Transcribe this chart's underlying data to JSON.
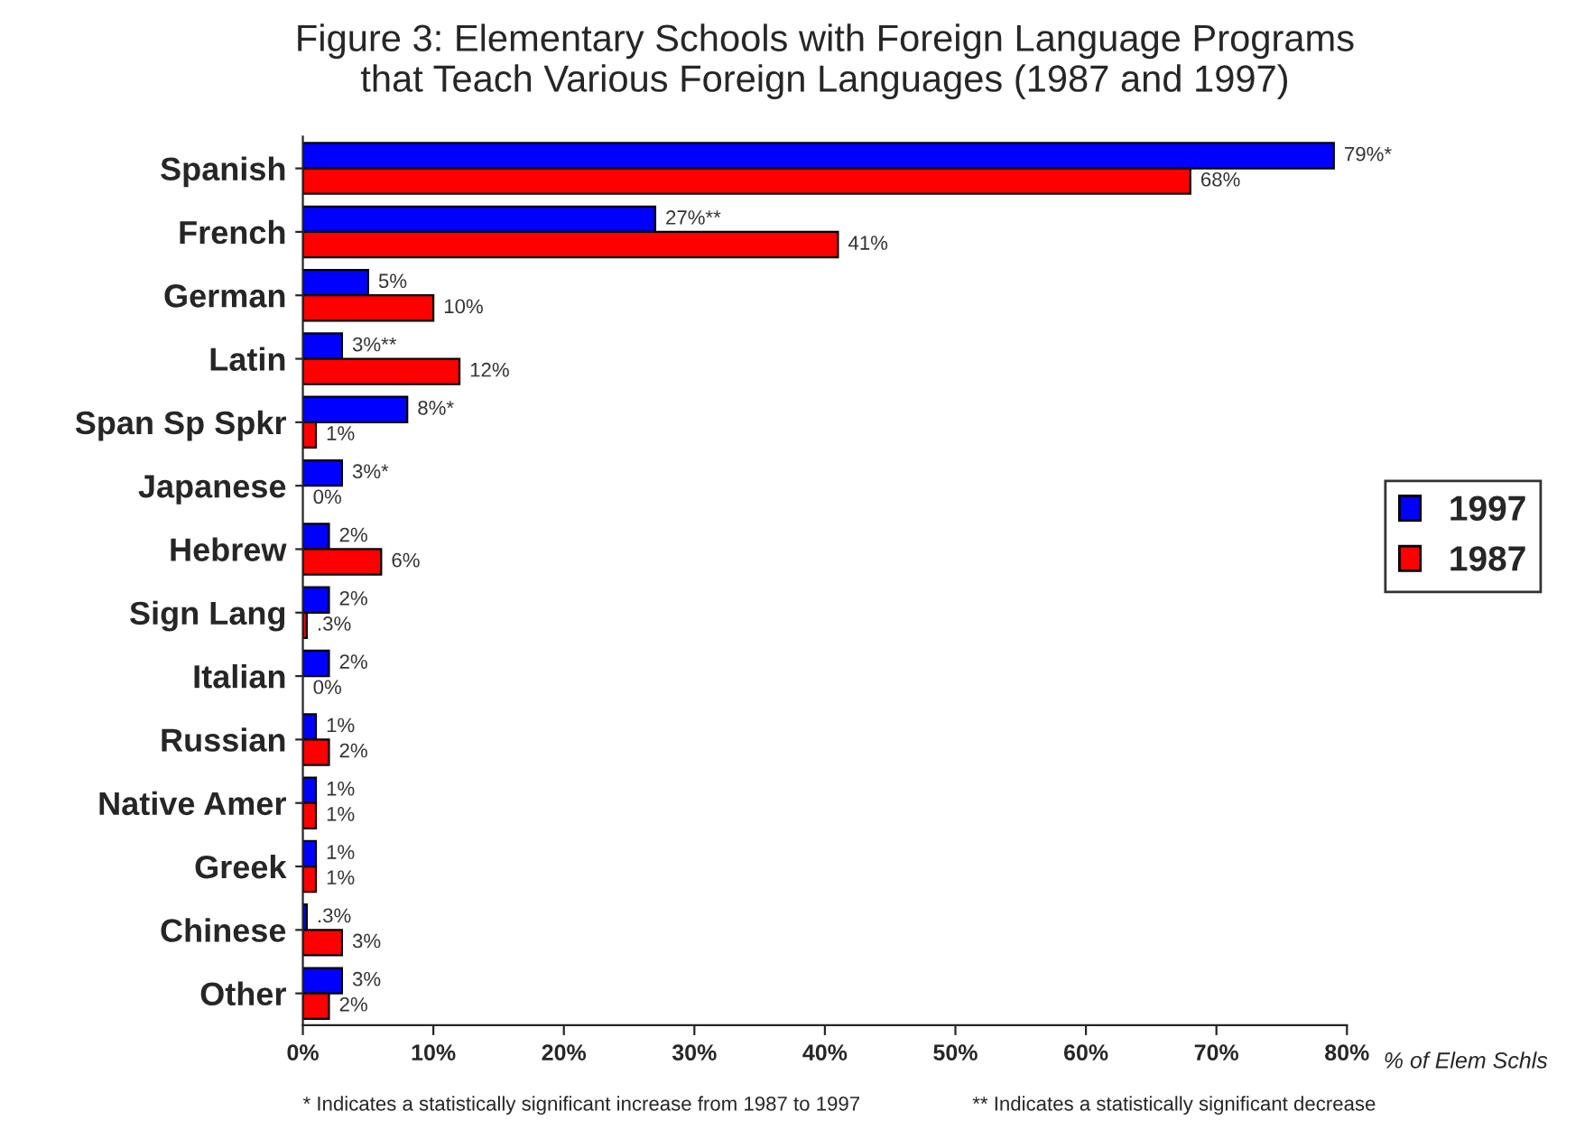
{
  "chart_data": {
    "type": "bar",
    "orientation": "horizontal",
    "title": "Figure 3: Elementary Schools with Foreign Language Programs\nthat Teach Various Foreign Languages (1987 and 1997)",
    "xlabel": "% of Elem Schls",
    "categories": [
      "Spanish",
      "French",
      "German",
      "Latin",
      "Span Sp Spkr",
      "Japanese",
      "Hebrew",
      "Sign Lang",
      "Italian",
      "Russian",
      "Native Amer",
      "Greek",
      "Chinese",
      "Other"
    ],
    "series": [
      {
        "name": "1997",
        "color": "#0000ff",
        "values": [
          79,
          27,
          5,
          3,
          8,
          3,
          2,
          2,
          2,
          1,
          1,
          1,
          0.3,
          3
        ],
        "value_labels": [
          "79%*",
          "27%**",
          "5%",
          "3%**",
          "8%*",
          "3%*",
          "2%",
          "2%",
          "2%",
          "1%",
          "1%",
          "1%",
          ".3%",
          "3%"
        ]
      },
      {
        "name": "1987",
        "color": "#ff0000",
        "values": [
          68,
          41,
          10,
          12,
          1,
          0,
          6,
          0.3,
          0,
          2,
          1,
          1,
          3,
          2
        ],
        "value_labels": [
          "68%",
          "41%",
          "10%",
          "12%",
          "1%",
          "0%",
          "6%",
          ".3%",
          "0%",
          "2%",
          "1%",
          "1%",
          "3%",
          "2%"
        ]
      }
    ],
    "xlim": [
      0,
      80
    ],
    "xticks": [
      {
        "value": 0,
        "label": "0%"
      },
      {
        "value": 10,
        "label": "10%"
      },
      {
        "value": 20,
        "label": "20%"
      },
      {
        "value": 30,
        "label": "30%"
      },
      {
        "value": 40,
        "label": "40%"
      },
      {
        "value": 50,
        "label": "50%"
      },
      {
        "value": 60,
        "label": "60%"
      },
      {
        "value": 70,
        "label": "70%"
      },
      {
        "value": 80,
        "label": "80%"
      }
    ],
    "legend": "right",
    "grid": false,
    "annotations": [
      "* Indicates a statistically significant increase from 1987 to 1997",
      "** Indicates a statistically significant decrease"
    ]
  }
}
